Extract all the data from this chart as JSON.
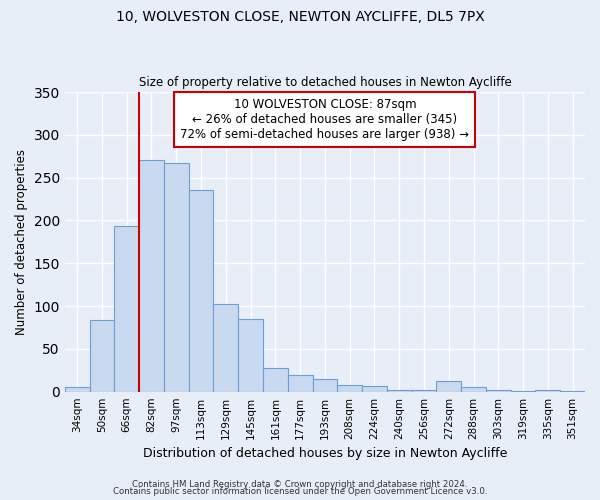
{
  "title": "10, WOLVESTON CLOSE, NEWTON AYCLIFFE, DL5 7PX",
  "subtitle": "Size of property relative to detached houses in Newton Aycliffe",
  "xlabel": "Distribution of detached houses by size in Newton Aycliffe",
  "ylabel": "Number of detached properties",
  "bar_labels": [
    "34sqm",
    "50sqm",
    "66sqm",
    "82sqm",
    "97sqm",
    "113sqm",
    "129sqm",
    "145sqm",
    "161sqm",
    "177sqm",
    "193sqm",
    "208sqm",
    "224sqm",
    "240sqm",
    "256sqm",
    "272sqm",
    "288sqm",
    "303sqm",
    "319sqm",
    "335sqm",
    "351sqm"
  ],
  "bar_values": [
    6,
    84,
    193,
    271,
    267,
    236,
    103,
    85,
    28,
    19,
    15,
    8,
    7,
    2,
    2,
    13,
    6,
    2,
    1,
    2,
    1
  ],
  "bar_color": "#c9d9f0",
  "bar_edge_color": "#6a9fd8",
  "background_color": "#e8eef8",
  "grid_color": "#ffffff",
  "ylim": [
    0,
    350
  ],
  "yticks": [
    0,
    50,
    100,
    150,
    200,
    250,
    300,
    350
  ],
  "property_line_color": "#cc0000",
  "annotation_title": "10 WOLVESTON CLOSE: 87sqm",
  "annotation_line1": "← 26% of detached houses are smaller (345)",
  "annotation_line2": "72% of semi-detached houses are larger (938) →",
  "annotation_box_color": "#cc0000",
  "footer1": "Contains HM Land Registry data © Crown copyright and database right 2024.",
  "footer2": "Contains public sector information licensed under the Open Government Licence v3.0.",
  "n_bars": 21
}
